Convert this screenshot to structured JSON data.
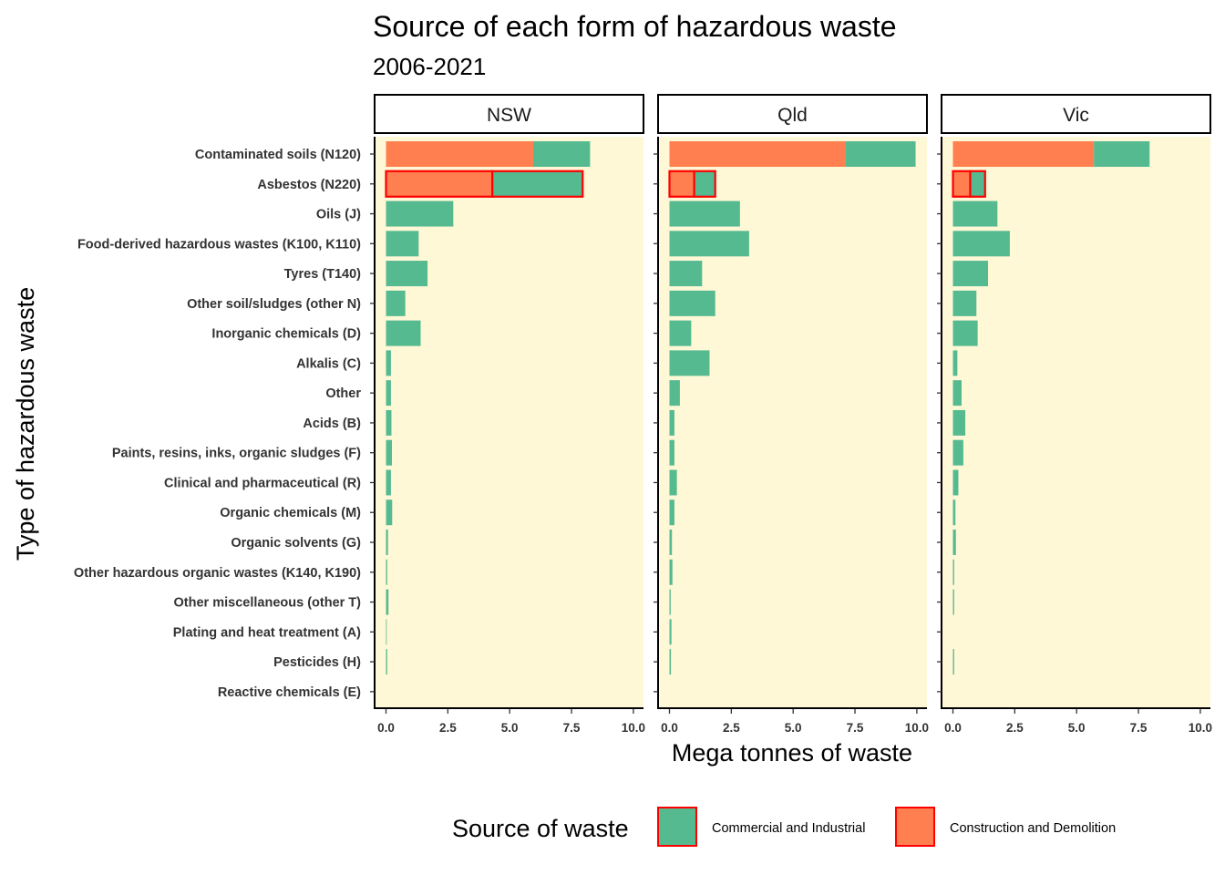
{
  "chart_data": {
    "type": "bar",
    "orientation": "horizontal",
    "stacked": true,
    "title": "Source of each form of hazardous waste",
    "subtitle": "2006-2021",
    "xlabel": "Mega tonnes of waste",
    "ylabel": "Type of hazardous waste",
    "xlim": [
      0,
      10
    ],
    "xticks": [
      "0.0",
      "2.5",
      "5.0",
      "7.5",
      "10.0"
    ],
    "xtick_values": [
      0,
      2.5,
      5,
      7.5,
      10
    ],
    "legend": {
      "title": "Source of waste",
      "position": "bottom",
      "items": [
        {
          "label": "Commercial and Industrial",
          "color": "#56BA91"
        },
        {
          "label": "Construction and Demolition",
          "color": "#FF7F50"
        }
      ]
    },
    "colors": {
      "panel_background": "#FFF8D6",
      "commercial": "#56BA91",
      "construction": "#FF7F50",
      "highlight": "#FF0000"
    },
    "categories": [
      "Contaminated soils (N120)",
      "Asbestos (N220)",
      "Oils (J)",
      "Food-derived hazardous wastes (K100, K110)",
      "Tyres (T140)",
      "Other soil/sludges (other N)",
      "Inorganic chemicals (D)",
      "Alkalis (C)",
      "Other",
      "Acids (B)",
      "Paints, resins, inks, organic sludges (F)",
      "Clinical and pharmaceutical (R)",
      "Organic chemicals (M)",
      "Organic solvents (G)",
      "Other hazardous organic wastes (K140, K190)",
      "Other miscellaneous (other T)",
      "Plating and heat treatment (A)",
      "Pesticides (H)",
      "Reactive chemicals (E)"
    ],
    "highlighted_category": "Asbestos (N220)",
    "panels": [
      {
        "name": "NSW",
        "series": [
          {
            "name": "Construction and Demolition",
            "values": [
              5.95,
              4.3,
              0,
              0,
              0,
              0,
              0,
              0,
              0,
              0,
              0,
              0,
              0,
              0,
              0,
              0,
              0,
              0,
              0
            ]
          },
          {
            "name": "Commercial and Industrial",
            "values": [
              2.3,
              3.65,
              2.72,
              1.32,
              1.68,
              0.78,
              1.4,
              0.2,
              0.2,
              0.22,
              0.24,
              0.2,
              0.25,
              0.08,
              0.05,
              0.1,
              0.02,
              0.05,
              0.0
            ]
          }
        ]
      },
      {
        "name": "Qld",
        "series": [
          {
            "name": "Construction and Demolition",
            "values": [
              7.1,
              1.0,
              0,
              0,
              0,
              0,
              0,
              0,
              0,
              0,
              0,
              0,
              0,
              0,
              0,
              0,
              0,
              0,
              0
            ]
          },
          {
            "name": "Commercial and Industrial",
            "values": [
              2.85,
              0.85,
              2.85,
              3.22,
              1.32,
              1.85,
              0.88,
              1.62,
              0.42,
              0.2,
              0.2,
              0.3,
              0.2,
              0.1,
              0.12,
              0.05,
              0.08,
              0.06,
              0.0
            ]
          }
        ]
      },
      {
        "name": "Vic",
        "series": [
          {
            "name": "Construction and Demolition",
            "values": [
              5.7,
              0.7,
              0,
              0,
              0,
              0,
              0,
              0,
              0,
              0,
              0,
              0,
              0,
              0,
              0,
              0,
              0,
              0,
              0
            ]
          },
          {
            "name": "Commercial and Industrial",
            "values": [
              2.25,
              0.6,
              1.8,
              2.3,
              1.42,
              0.95,
              1.0,
              0.18,
              0.35,
              0.5,
              0.42,
              0.22,
              0.1,
              0.12,
              0.05,
              0.05,
              0.0,
              0.05,
              0.0
            ]
          }
        ]
      }
    ]
  }
}
